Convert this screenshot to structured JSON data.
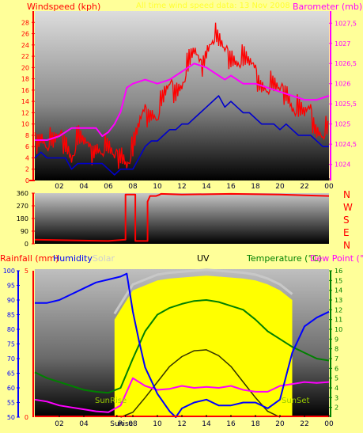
{
  "colors": {
    "background": "#ffff99",
    "windspeed": "#ff0000",
    "gust": "#dd0000",
    "avgwind": "#0000cc",
    "barometer": "#ff00ff",
    "direction": "#ff0000",
    "humidity": "#0000ff",
    "solar": "#ffff00",
    "solar_max": "#c8c8c8",
    "uv": "#333300",
    "temperature": "#008000",
    "dewpoint": "#ff00ff",
    "rainfall": "#ff0000"
  },
  "chart_data": [
    {
      "type": "line",
      "title": "All time wind speed data: 13 Nov 2008",
      "ylabel": "Windspeed (kph)",
      "ylabel_right": "Barometer (mb)",
      "x_ticks": [
        "02",
        "04",
        "06",
        "08",
        "10",
        "12",
        "14",
        "16",
        "18",
        "20",
        "22",
        "00"
      ],
      "ylim": [
        0,
        30
      ],
      "y_ticks": [
        "0",
        "2",
        "4",
        "6",
        "8",
        "10",
        "12",
        "14",
        "16",
        "18",
        "20",
        "22",
        "24",
        "26",
        "28"
      ],
      "ylim_right": [
        1023.6,
        1027.8
      ],
      "y_ticks_right": [
        "1024",
        "1024,5",
        "1025",
        "1025,5",
        "1026",
        "1026,5",
        "1027",
        "1027,5"
      ],
      "grid": false,
      "series": [
        {
          "name": "Windspeed",
          "axis": "left",
          "x": [
            0,
            0.5,
            1,
            1.5,
            2,
            2.5,
            3,
            3.5,
            4,
            4.5,
            5,
            5.5,
            6,
            6.5,
            7,
            7.5,
            8,
            8.5,
            9,
            9.5,
            10,
            10.5,
            11,
            11.5,
            12,
            12.5,
            13,
            13.5,
            14,
            14.5,
            15,
            15.5,
            16,
            16.5,
            17,
            17.5,
            18,
            18.5,
            19,
            19.5,
            20,
            20.5,
            21,
            21.5,
            22,
            22.5,
            23,
            23.5,
            24
          ],
          "y": [
            7,
            9,
            7,
            6,
            7,
            8,
            5,
            7,
            6,
            5,
            7,
            6,
            5,
            3,
            6,
            4,
            5,
            9,
            12,
            13,
            12,
            14,
            16,
            17,
            18,
            20,
            22,
            20,
            24,
            26,
            24,
            22,
            23,
            22,
            21,
            20,
            19,
            18,
            17,
            16,
            15,
            17,
            14,
            12,
            11,
            12,
            10,
            9,
            8
          ]
        },
        {
          "name": "Average wind",
          "axis": "left",
          "x": [
            0,
            0.5,
            1,
            1.5,
            2,
            2.5,
            3,
            3.5,
            4,
            4.5,
            5,
            5.5,
            6,
            6.5,
            7,
            7.5,
            8,
            8.5,
            9,
            9.5,
            10,
            10.5,
            11,
            11.5,
            12,
            12.5,
            13,
            13.5,
            14,
            14.5,
            15,
            15.5,
            16,
            16.5,
            17,
            17.5,
            18,
            18.5,
            19,
            19.5,
            20,
            20.5,
            21,
            21.5,
            22,
            22.5,
            23,
            23.5,
            24
          ],
          "y": [
            4,
            5,
            4,
            4,
            4,
            4,
            2,
            3,
            3,
            3,
            3,
            3,
            2,
            1,
            2,
            2,
            2,
            4,
            6,
            7,
            7,
            8,
            9,
            9,
            10,
            10,
            11,
            12,
            13,
            14,
            15,
            13,
            14,
            13,
            12,
            12,
            11,
            10,
            10,
            10,
            9,
            10,
            9,
            8,
            8,
            8,
            7,
            6,
            6
          ]
        },
        {
          "name": "Barometer",
          "axis": "right",
          "x": [
            0,
            1,
            2,
            3,
            4,
            5,
            5.5,
            6,
            6.5,
            7,
            7.5,
            8,
            9,
            10,
            11,
            12,
            13,
            14,
            14.5,
            15,
            15.5,
            16,
            17,
            18,
            19,
            20,
            21,
            22,
            23,
            24
          ],
          "y": [
            1024.6,
            1024.6,
            1024.7,
            1024.9,
            1024.9,
            1024.9,
            1024.7,
            1024.8,
            1025,
            1025.3,
            1025.9,
            1026,
            1026.1,
            1026.0,
            1026.1,
            1026.3,
            1026.5,
            1026.4,
            1026.3,
            1026.2,
            1026.1,
            1026.2,
            1026.0,
            1026.0,
            1025.9,
            1025.8,
            1025.7,
            1025.6,
            1025.6,
            1025.7
          ]
        }
      ]
    },
    {
      "type": "line",
      "ylabel_right": "N W S E N",
      "x_ticks": [
        "02",
        "04",
        "06",
        "08",
        "10",
        "12",
        "14",
        "16",
        "18",
        "20",
        "22",
        "00"
      ],
      "ylim": [
        0,
        360
      ],
      "y_ticks": [
        "0",
        "90",
        "180",
        "270",
        "360"
      ],
      "series": [
        {
          "name": "Wind direction",
          "x": [
            0,
            3,
            6,
            7.4,
            7.4,
            7.6,
            8.2,
            8.2,
            9.2,
            9.2,
            9.4,
            9.9,
            10.2,
            10.3,
            12,
            16,
            20,
            24
          ],
          "y": [
            30,
            25,
            20,
            30,
            350,
            350,
            350,
            20,
            20,
            300,
            340,
            340,
            350,
            355,
            350,
            355,
            350,
            340
          ]
        }
      ]
    },
    {
      "type": "line",
      "headers": [
        "Rainfall (mm)",
        "Humidity",
        "Solar",
        "UV",
        "Temperature (°C)",
        "Dew Point (°C)"
      ],
      "x_ticks": [
        "02",
        "04",
        "Sun",
        "Rise",
        "08",
        "10",
        "12",
        "14",
        "16",
        "18",
        "20",
        "22",
        "00"
      ],
      "annotations": [
        "SunRise",
        "SunSet"
      ],
      "ylim_humidity": [
        50,
        100
      ],
      "y_ticks_humidity": [
        "50",
        "55",
        "60",
        "65",
        "70",
        "75",
        "80",
        "85",
        "90",
        "95",
        "100"
      ],
      "y_ticks_rain": [
        "0",
        "5"
      ],
      "ylim_temp": [
        1,
        16
      ],
      "y_ticks_temp": [
        "2",
        "3",
        "4",
        "5",
        "6",
        "7",
        "8",
        "9",
        "10",
        "11",
        "12",
        "13",
        "14",
        "15",
        "16"
      ],
      "series": [
        {
          "name": "Humidity",
          "x": [
            0,
            1,
            2,
            3,
            4,
            5,
            6,
            7,
            7.5,
            8,
            8.5,
            9,
            10,
            11,
            11.5,
            12,
            13,
            14,
            15,
            16,
            17,
            18,
            19,
            20,
            21,
            22,
            23,
            24
          ],
          "y": [
            89,
            89,
            90,
            92,
            94,
            96,
            97,
            98,
            99,
            86,
            76,
            67,
            58,
            52,
            50,
            53,
            55,
            56,
            54,
            54,
            55,
            55,
            53,
            56,
            72,
            81,
            84,
            86
          ]
        },
        {
          "name": "Temperature",
          "x": [
            0,
            1,
            2,
            3,
            4,
            5,
            6,
            7,
            8,
            9,
            10,
            11,
            12,
            13,
            14,
            15,
            16,
            17,
            18,
            19,
            20,
            21,
            22,
            23,
            24
          ],
          "y": [
            5.6,
            5.0,
            4.6,
            4.2,
            3.8,
            3.6,
            3.5,
            4.0,
            7.0,
            9.8,
            11.5,
            12.2,
            12.6,
            12.9,
            13.0,
            12.8,
            12.4,
            12.0,
            11.0,
            9.8,
            9.0,
            8.2,
            7.6,
            7.0,
            6.8
          ]
        },
        {
          "name": "Dew Point",
          "x": [
            0,
            1,
            2,
            3,
            4,
            5,
            6,
            7,
            8,
            9,
            10,
            11,
            12,
            13,
            14,
            15,
            16,
            17,
            18,
            19,
            20,
            21,
            22,
            23,
            24
          ],
          "y": [
            2.8,
            2.6,
            2.2,
            2.0,
            1.8,
            1.6,
            1.5,
            2.2,
            5.0,
            4.2,
            3.8,
            3.9,
            4.2,
            4.0,
            4.1,
            4.0,
            4.2,
            3.8,
            3.6,
            3.6,
            4.2,
            4.4,
            4.6,
            4.5,
            4.6
          ]
        },
        {
          "name": "UV",
          "x": [
            7,
            8,
            9,
            10,
            11,
            12,
            13,
            14,
            15,
            16,
            17,
            18,
            19,
            20
          ],
          "y": [
            1.0,
            1.5,
            3.0,
            4.6,
            6.2,
            7.2,
            7.8,
            7.9,
            7.3,
            6.2,
            4.6,
            3.0,
            1.6,
            1.0
          ]
        },
        {
          "name": "Solar",
          "x": [
            6.5,
            7,
            7.5,
            8,
            9,
            10,
            11,
            12,
            13,
            14,
            15,
            16,
            17,
            18,
            19,
            20,
            21
          ],
          "y": [
            11,
            12,
            13,
            14,
            14.5,
            15,
            15.2,
            15.3,
            15.4,
            15.5,
            15.4,
            15.3,
            15.2,
            15,
            14.6,
            14,
            13
          ]
        },
        {
          "name": "Rainfall",
          "x": [
            0,
            24
          ],
          "y": [
            0,
            0
          ]
        }
      ]
    }
  ],
  "labels": {
    "panel1_left": "Windspeed (kph)",
    "panel1_title": "All time wind speed data: 13 Nov 2008",
    "panel1_right": "Barometer (mb)",
    "compass_n1": "N",
    "compass_w": "W",
    "compass_s": "S",
    "compass_e": "E",
    "compass_n2": "N",
    "rain": "Rainfall (mm)",
    "humidity": "Humidity",
    "solar": "Solar",
    "uv": "UV",
    "temperature": "Temperature (°C)",
    "dewpoint": "Dew Point (°C",
    "sunrise": "SunRise",
    "sunset": "SunSet",
    "sunrise_tick_a": "Sun",
    "sunrise_tick_b": "Rise"
  }
}
